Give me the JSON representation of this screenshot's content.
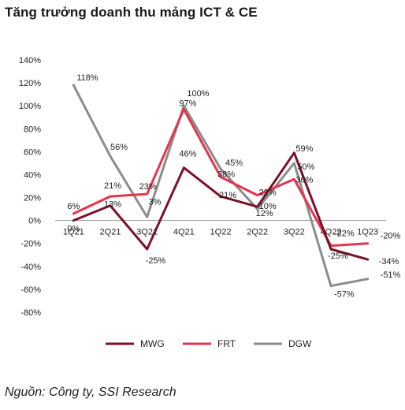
{
  "title": "Tăng trưởng doanh thu mảng ICT & CE",
  "source": "Nguồn: Công ty, SSI Research",
  "chart_data": {
    "type": "line",
    "categories": [
      "1Q21",
      "2Q21",
      "3Q21",
      "4Q21",
      "1Q22",
      "2Q22",
      "3Q22",
      "4Q22",
      "1Q23"
    ],
    "ylim": [
      -80,
      140
    ],
    "yticks": [
      -80,
      -60,
      -40,
      -20,
      0,
      20,
      40,
      60,
      80,
      100,
      120,
      140
    ],
    "ytick_labels": [
      "-80%",
      "-60%",
      "-40%",
      "-20%",
      "0%",
      "20%",
      "40%",
      "60%",
      "80%",
      "100%",
      "120%",
      "140%"
    ],
    "grid": false,
    "legend_position": "bottom",
    "series": [
      {
        "name": "MWG",
        "color": "#7a1228",
        "values": [
          0,
          13,
          -25,
          46,
          21,
          12,
          59,
          -25,
          -34
        ],
        "labels": [
          "0%",
          "13%",
          "-25%",
          "46%",
          "21%",
          "12%",
          "59%",
          "-25%",
          "-34%"
        ]
      },
      {
        "name": "FRT",
        "color": "#e8334f",
        "values": [
          6,
          21,
          23,
          97,
          38,
          22,
          36,
          -22,
          -20
        ],
        "labels": [
          "6%",
          "21%",
          "23%",
          "97%",
          "38%",
          "22%",
          "36%",
          "-22%",
          "-20%"
        ]
      },
      {
        "name": "DGW",
        "color": "#8c8c8c",
        "values": [
          118,
          56,
          3,
          100,
          45,
          10,
          50,
          -57,
          -51
        ],
        "labels": [
          "118%",
          "56%",
          "3%",
          "100%",
          "45%",
          "10%",
          "50%",
          "-57%",
          "-51%"
        ]
      }
    ]
  }
}
